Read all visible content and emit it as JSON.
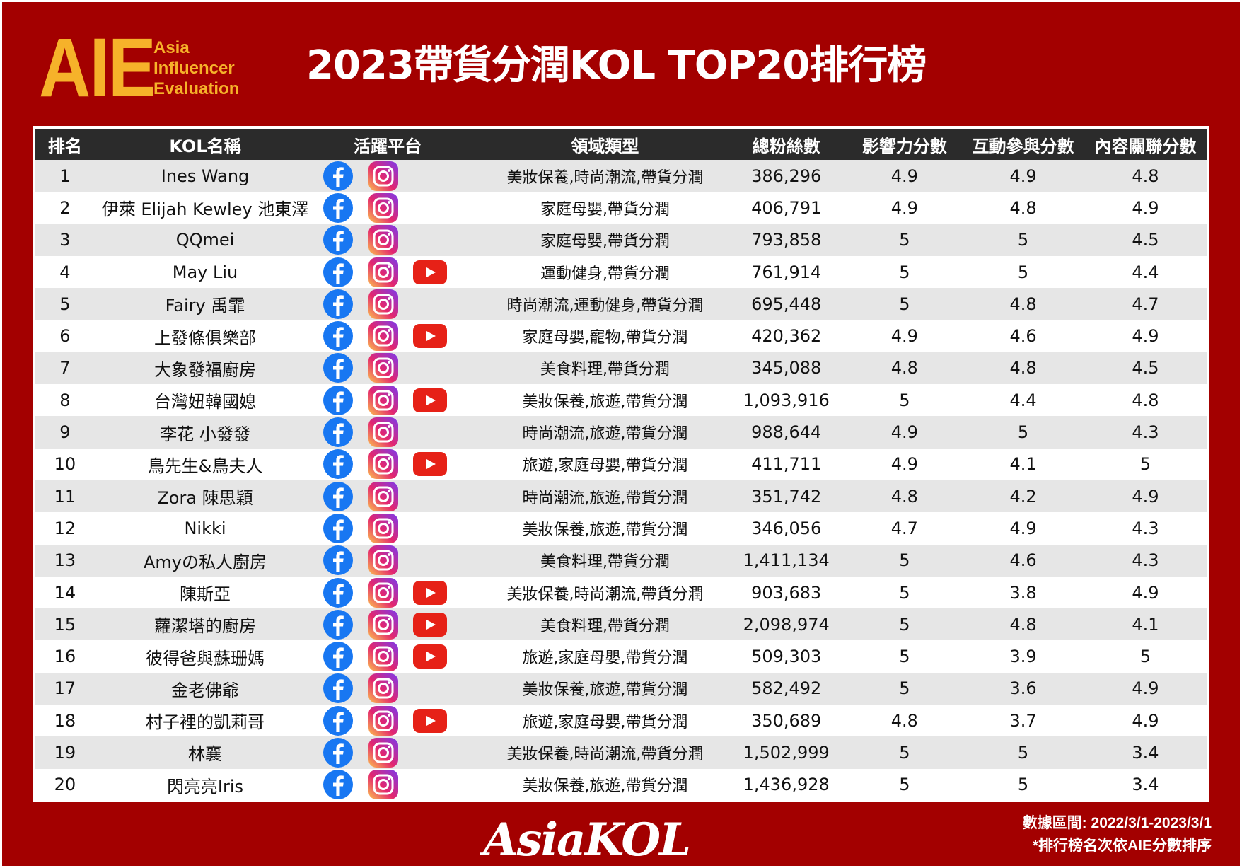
{
  "logo": {
    "big": "AIE",
    "line1": "Asia",
    "line2": "Influencer",
    "line3": "Evaluation"
  },
  "title": "2023帶貨分潤KOL TOP20排行榜",
  "colors": {
    "background": "#a30000",
    "logo": "#f6b22a",
    "header": "#2b2b2b"
  },
  "table": {
    "headers": [
      "排名",
      "KOL名稱",
      "活躍平台",
      "領域類型",
      "總粉絲數",
      "影響力分數",
      "互動參與分數",
      "內容關聯分數"
    ],
    "rows": [
      {
        "rank": "1",
        "name": "Ines Wang",
        "platforms": [
          "facebook-icon",
          "instagram-icon"
        ],
        "domain": "美妝保養,時尚潮流,帶貨分潤",
        "fans": "386,296",
        "influence": "4.9",
        "engagement": "4.9",
        "relevance": "4.8"
      },
      {
        "rank": "2",
        "name": "伊萊 Elijah Kewley 池東澤",
        "platforms": [
          "facebook-icon",
          "instagram-icon"
        ],
        "domain": "家庭母嬰,帶貨分潤",
        "fans": "406,791",
        "influence": "4.9",
        "engagement": "4.8",
        "relevance": "4.9"
      },
      {
        "rank": "3",
        "name": "QQmei",
        "platforms": [
          "facebook-icon",
          "instagram-icon"
        ],
        "domain": "家庭母嬰,帶貨分潤",
        "fans": "793,858",
        "influence": "5",
        "engagement": "5",
        "relevance": "4.5"
      },
      {
        "rank": "4",
        "name": "May Liu",
        "platforms": [
          "facebook-icon",
          "instagram-icon",
          "youtube-icon"
        ],
        "domain": "運動健身,帶貨分潤",
        "fans": "761,914",
        "influence": "5",
        "engagement": "5",
        "relevance": "4.4"
      },
      {
        "rank": "5",
        "name": "Fairy 禹霏",
        "platforms": [
          "facebook-icon",
          "instagram-icon"
        ],
        "domain": "時尚潮流,運動健身,帶貨分潤",
        "fans": "695,448",
        "influence": "5",
        "engagement": "4.8",
        "relevance": "4.7"
      },
      {
        "rank": "6",
        "name": "上發條俱樂部",
        "platforms": [
          "facebook-icon",
          "instagram-icon",
          "youtube-icon"
        ],
        "domain": "家庭母嬰,寵物,帶貨分潤",
        "fans": "420,362",
        "influence": "4.9",
        "engagement": "4.6",
        "relevance": "4.9"
      },
      {
        "rank": "7",
        "name": "大象發福廚房",
        "platforms": [
          "facebook-icon",
          "instagram-icon"
        ],
        "domain": "美食料理,帶貨分潤",
        "fans": "345,088",
        "influence": "4.8",
        "engagement": "4.8",
        "relevance": "4.5"
      },
      {
        "rank": "8",
        "name": "台灣妞韓國媳",
        "platforms": [
          "facebook-icon",
          "instagram-icon",
          "youtube-icon"
        ],
        "domain": "美妝保養,旅遊,帶貨分潤",
        "fans": "1,093,916",
        "influence": "5",
        "engagement": "4.4",
        "relevance": "4.8"
      },
      {
        "rank": "9",
        "name": "李花 小發發",
        "platforms": [
          "facebook-icon",
          "instagram-icon"
        ],
        "domain": "時尚潮流,旅遊,帶貨分潤",
        "fans": "988,644",
        "influence": "4.9",
        "engagement": "5",
        "relevance": "4.3"
      },
      {
        "rank": "10",
        "name": "鳥先生&鳥夫人",
        "platforms": [
          "facebook-icon",
          "instagram-icon",
          "youtube-icon"
        ],
        "domain": "旅遊,家庭母嬰,帶貨分潤",
        "fans": "411,711",
        "influence": "4.9",
        "engagement": "4.1",
        "relevance": "5"
      },
      {
        "rank": "11",
        "name": "Zora 陳思穎",
        "platforms": [
          "facebook-icon",
          "instagram-icon"
        ],
        "domain": "時尚潮流,旅遊,帶貨分潤",
        "fans": "351,742",
        "influence": "4.8",
        "engagement": "4.2",
        "relevance": "4.9"
      },
      {
        "rank": "12",
        "name": "Nikki",
        "platforms": [
          "facebook-icon",
          "instagram-icon"
        ],
        "domain": "美妝保養,旅遊,帶貨分潤",
        "fans": "346,056",
        "influence": "4.7",
        "engagement": "4.9",
        "relevance": "4.3"
      },
      {
        "rank": "13",
        "name": "Amyの私人廚房",
        "platforms": [
          "facebook-icon",
          "instagram-icon"
        ],
        "domain": "美食料理,帶貨分潤",
        "fans": "1,411,134",
        "influence": "5",
        "engagement": "4.6",
        "relevance": "4.3"
      },
      {
        "rank": "14",
        "name": "陳斯亞",
        "platforms": [
          "facebook-icon",
          "instagram-icon",
          "youtube-icon"
        ],
        "domain": "美妝保養,時尚潮流,帶貨分潤",
        "fans": "903,683",
        "influence": "5",
        "engagement": "3.8",
        "relevance": "4.9"
      },
      {
        "rank": "15",
        "name": "蘿潔塔的廚房",
        "platforms": [
          "facebook-icon",
          "instagram-icon",
          "youtube-icon"
        ],
        "domain": "美食料理,帶貨分潤",
        "fans": "2,098,974",
        "influence": "5",
        "engagement": "4.8",
        "relevance": "4.1"
      },
      {
        "rank": "16",
        "name": "彼得爸與蘇珊媽",
        "platforms": [
          "facebook-icon",
          "instagram-icon",
          "youtube-icon"
        ],
        "domain": "旅遊,家庭母嬰,帶貨分潤",
        "fans": "509,303",
        "influence": "5",
        "engagement": "3.9",
        "relevance": "5"
      },
      {
        "rank": "17",
        "name": "金老佛爺",
        "platforms": [
          "facebook-icon",
          "instagram-icon"
        ],
        "domain": "美妝保養,旅遊,帶貨分潤",
        "fans": "582,492",
        "influence": "5",
        "engagement": "3.6",
        "relevance": "4.9"
      },
      {
        "rank": "18",
        "name": "村子裡的凱莉哥",
        "platforms": [
          "facebook-icon",
          "instagram-icon",
          "youtube-icon"
        ],
        "domain": "旅遊,家庭母嬰,帶貨分潤",
        "fans": "350,689",
        "influence": "4.8",
        "engagement": "3.7",
        "relevance": "4.9"
      },
      {
        "rank": "19",
        "name": "林襄",
        "platforms": [
          "facebook-icon",
          "instagram-icon"
        ],
        "domain": "美妝保養,時尚潮流,帶貨分潤",
        "fans": "1,502,999",
        "influence": "5",
        "engagement": "5",
        "relevance": "3.4"
      },
      {
        "rank": "20",
        "name": "閃亮亮Iris",
        "platforms": [
          "facebook-icon",
          "instagram-icon"
        ],
        "domain": "美妝保養,旅遊,帶貨分潤",
        "fans": "1,436,928",
        "influence": "5",
        "engagement": "5",
        "relevance": "3.4"
      }
    ]
  },
  "footer": {
    "brand": "AsiaKOL",
    "data_range": "數據區間: 2022/3/1-2023/3/1",
    "note": "*排行榜名次依AIE分數排序"
  }
}
